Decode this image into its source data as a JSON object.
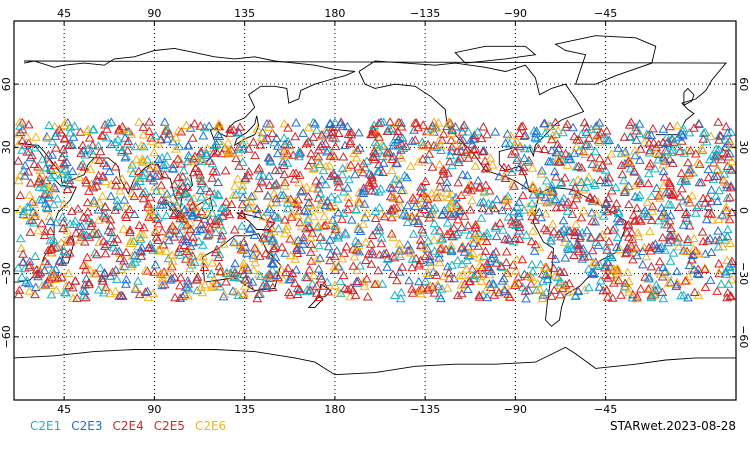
{
  "map": {
    "projection": "equirectangular-pacific-centered",
    "longitude_labels": [
      "45",
      "90",
      "135",
      "180",
      "−135",
      "−90",
      "−45"
    ],
    "longitude_values": [
      45,
      90,
      135,
      180,
      -135,
      -90,
      -45
    ],
    "latitude_labels": [
      "60",
      "30",
      "0",
      "−30",
      "−60"
    ],
    "latitude_values": [
      60,
      30,
      0,
      -30,
      -60
    ],
    "grid": "dotted",
    "lat_range": [
      -90,
      90
    ],
    "lon_range": [
      20,
      380
    ],
    "coastlines": true,
    "land_fill": "none",
    "ocean_fill": "white"
  },
  "observations": {
    "marker": "open-triangle",
    "lat_extent": [
      -42,
      42
    ],
    "series": [
      {
        "name": "C2E1",
        "color": "#17b3c7"
      },
      {
        "name": "C2E3",
        "color": "#1f6fd1"
      },
      {
        "name": "C2E4",
        "color": "#c2292e"
      },
      {
        "name": "C2E5",
        "color": "#e02020"
      },
      {
        "name": "C2E6",
        "color": "#f2b21d"
      }
    ]
  },
  "legend": {
    "items": [
      {
        "label": "C2E1",
        "color": "#17b3c7"
      },
      {
        "label": "C2E3",
        "color": "#1f6fd1"
      },
      {
        "label": "C2E4",
        "color": "#c2292e"
      },
      {
        "label": "C2E5",
        "color": "#e02020"
      },
      {
        "label": "C2E6",
        "color": "#f2b21d"
      }
    ]
  },
  "footer": {
    "product_label": "STARwet.2023-08-28"
  }
}
